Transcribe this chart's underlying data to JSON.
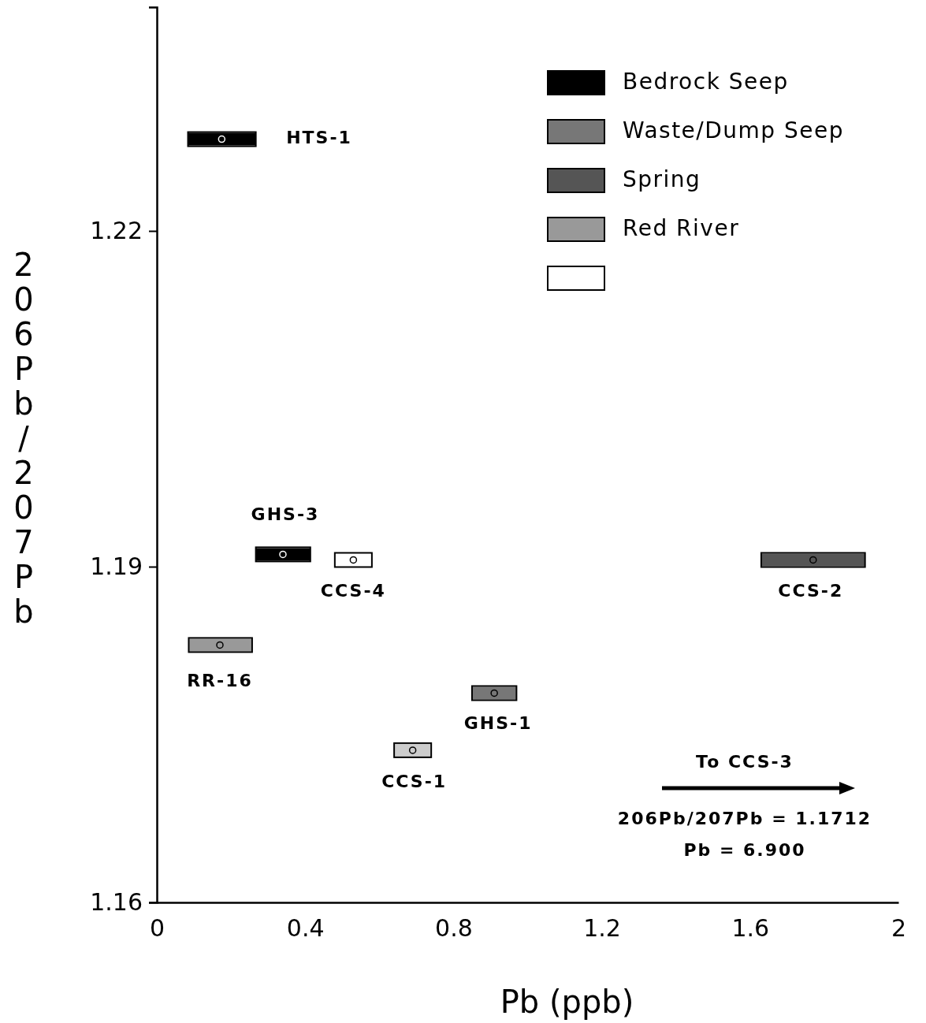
{
  "chart_data": {
    "type": "scatter",
    "xlabel": "Pb (ppb)",
    "ylabel": "206Pb/207Pb",
    "xlim": [
      0,
      2
    ],
    "ylim": [
      1.16,
      1.24
    ],
    "xticks": [
      0,
      0.4,
      0.8,
      1.2,
      1.6,
      2
    ],
    "yticks": [
      1.16,
      1.19,
      1.22
    ],
    "grid": false,
    "legend": "top right",
    "series": [
      {
        "name": "Bedrock Seep",
        "color": "#000000",
        "x": [
          0.175,
          0.34
        ],
        "values": [
          1.2282,
          1.1911
        ],
        "xerrors": [
          [
            0.084,
            0.267
          ],
          [
            0.267,
            0.414
          ]
        ]
      },
      {
        "name": "Waste/Dump Seep",
        "color": "#777777",
        "x": [
          0.91
        ],
        "values": [
          1.1787
        ],
        "xerrors": [
          [
            0.85,
            0.97
          ]
        ]
      },
      {
        "name": "Spring",
        "color": "#555555",
        "x": [
          1.77
        ],
        "values": [
          1.1906
        ],
        "xerrors": [
          [
            1.63,
            1.91
          ]
        ]
      },
      {
        "name": "Red River",
        "color": "#999999",
        "x": [
          0.17
        ],
        "values": [
          1.183
        ],
        "xerrors": [
          [
            0.086,
            0.257
          ]
        ]
      },
      {
        "color": "#ffffff",
        "colors": [
          "#ffffff",
          "#cccccc"
        ],
        "x": [
          0.53,
          0.69
        ],
        "values": [
          1.1906,
          1.1736
        ],
        "xerrors": [
          [
            0.48,
            0.58
          ],
          [
            0.64,
            0.74
          ]
        ]
      }
    ],
    "annotations": [
      "HTS-1",
      {
        "text": "GHS-3",
        "x": 0.34,
        "y": 1.1911
      },
      {
        "text": "CCS-4",
        "x": 0.53,
        "y": 1.1906
      },
      {
        "text": "CCS-2",
        "x": 1.77,
        "y": 1.1906
      },
      {
        "text": "RR-16",
        "x": 0.17,
        "y": 1.183
      },
      {
        "text": "GHS-1",
        "x": 0.91,
        "y": 1.1787
      },
      {
        "text": "CCS-1",
        "x": 0.69,
        "y": 1.1736
      },
      "To CCS-3",
      "206Pb/207Pb = 1.1712",
      "Pb = 6.900"
    ]
  }
}
